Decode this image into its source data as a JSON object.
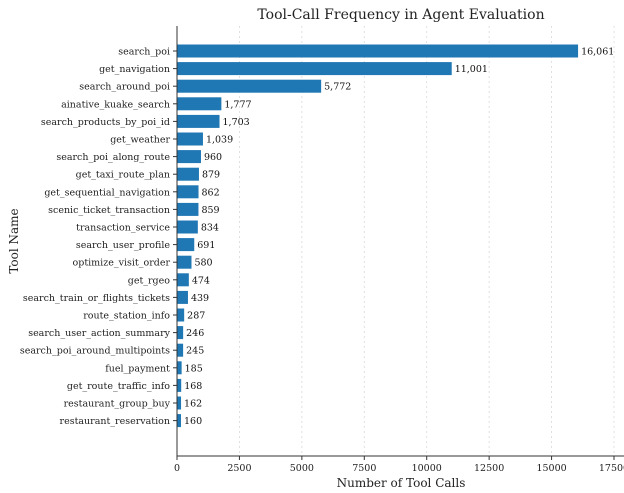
{
  "chart_data": {
    "type": "bar",
    "orientation": "horizontal",
    "title": "Tool-Call Frequency in Agent Evaluation",
    "xlabel": "Number of Tool Calls",
    "ylabel": "Tool Name",
    "xlim": [
      0,
      17500
    ],
    "xticks": [
      0,
      2500,
      5000,
      7500,
      10000,
      12500,
      15000,
      17500
    ],
    "grid": true,
    "bar_color": "#1f77b4",
    "categories": [
      "search_poi",
      "get_navigation",
      "search_around_poi",
      "ainative_kuake_search",
      "search_products_by_poi_id",
      "get_weather",
      "search_poi_along_route",
      "get_taxi_route_plan",
      "get_sequential_navigation",
      "scenic_ticket_transaction",
      "transaction_service",
      "search_user_profile",
      "optimize_visit_order",
      "get_rgeo",
      "search_train_or_flights_tickets",
      "route_station_info",
      "search_user_action_summary",
      "search_poi_around_multipoints",
      "fuel_payment",
      "get_route_traffic_info",
      "restaurant_group_buy",
      "restaurant_reservation"
    ],
    "values": [
      16061,
      11001,
      5772,
      1777,
      1703,
      1039,
      960,
      879,
      862,
      859,
      834,
      691,
      580,
      474,
      439,
      287,
      246,
      245,
      185,
      168,
      162,
      160
    ],
    "value_labels": [
      "16,061",
      "11,001",
      "5,772",
      "1,777",
      "1,703",
      "1,039",
      "960",
      "879",
      "862",
      "859",
      "834",
      "691",
      "580",
      "474",
      "439",
      "287",
      "246",
      "245",
      "185",
      "168",
      "162",
      "160"
    ]
  }
}
